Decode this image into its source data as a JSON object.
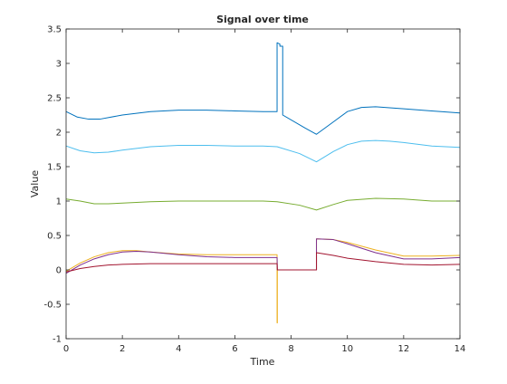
{
  "chart_data": {
    "type": "line",
    "title": "Signal over time",
    "xlabel": "Time",
    "ylabel": "Value",
    "xlim": [
      0,
      14
    ],
    "ylim": [
      -1,
      3.5
    ],
    "xticks": [
      0,
      2,
      4,
      6,
      8,
      10,
      12,
      14
    ],
    "xtick_labels": [
      "0",
      "2",
      "4",
      "6",
      "8",
      "10",
      "12",
      "14"
    ],
    "yticks": [
      -1,
      -0.5,
      0,
      0.5,
      1,
      1.5,
      2,
      2.5,
      3,
      3.5
    ],
    "ytick_labels": [
      "-1",
      "-0.5",
      "0",
      "0.5",
      "1",
      "1.5",
      "2",
      "2.5",
      "3",
      "3.5"
    ],
    "grid": false,
    "legend": "none",
    "series": [
      {
        "color": "#0072BD",
        "x": [
          0,
          0.4,
          0.8,
          1.2,
          2,
          3,
          4,
          5,
          6,
          7,
          7.5,
          7.5,
          7.6,
          7.6,
          7.7,
          7.7,
          8.5,
          8.9,
          9.5,
          10,
          10.5,
          11,
          12,
          13,
          14
        ],
        "y": [
          2.3,
          2.22,
          2.19,
          2.19,
          2.25,
          2.3,
          2.32,
          2.32,
          2.31,
          2.3,
          2.3,
          3.3,
          3.28,
          3.25,
          3.25,
          2.25,
          2.06,
          1.97,
          2.15,
          2.3,
          2.36,
          2.37,
          2.34,
          2.31,
          2.28
        ]
      },
      {
        "color": "#4DBEEE",
        "x": [
          0,
          0.5,
          1,
          1.5,
          2,
          3,
          4,
          5,
          6,
          7,
          7.5,
          8.3,
          8.9,
          9.5,
          10,
          10.5,
          11,
          11.5,
          12,
          13,
          14
        ],
        "y": [
          1.8,
          1.73,
          1.7,
          1.71,
          1.74,
          1.79,
          1.81,
          1.81,
          1.8,
          1.8,
          1.79,
          1.69,
          1.57,
          1.72,
          1.82,
          1.87,
          1.88,
          1.87,
          1.85,
          1.8,
          1.78
        ]
      },
      {
        "color": "#77AC30",
        "x": [
          0,
          0.5,
          1,
          1.5,
          2,
          3,
          4,
          5,
          6,
          7,
          7.5,
          8.3,
          8.9,
          9.5,
          10,
          11,
          12,
          13,
          14
        ],
        "y": [
          1.03,
          1.0,
          0.96,
          0.96,
          0.97,
          0.99,
          1.0,
          1.0,
          1.0,
          1.0,
          0.99,
          0.94,
          0.87,
          0.95,
          1.01,
          1.04,
          1.03,
          1.0,
          1.0
        ]
      },
      {
        "color": "#EDB120",
        "x": [
          0,
          0.5,
          1,
          1.5,
          2,
          2.5,
          3,
          4,
          5,
          6,
          7,
          7.5,
          7.5,
          7.51,
          7.51,
          8.9,
          8.9,
          9.5,
          10,
          11,
          12,
          13,
          14
        ],
        "y": [
          -0.02,
          0.1,
          0.19,
          0.25,
          0.28,
          0.28,
          0.26,
          0.23,
          0.22,
          0.22,
          0.22,
          0.22,
          -0.77,
          -0.77,
          0.0,
          0.0,
          0.45,
          0.44,
          0.4,
          0.29,
          0.2,
          0.2,
          0.21
        ]
      },
      {
        "color": "#7E2F8E",
        "x": [
          0,
          0.5,
          1,
          1.5,
          2,
          2.5,
          3,
          4,
          5,
          6,
          7,
          7.5,
          7.51,
          8.9,
          8.9,
          9.5,
          10,
          11,
          12,
          13,
          14
        ],
        "y": [
          -0.05,
          0.07,
          0.16,
          0.22,
          0.26,
          0.27,
          0.26,
          0.22,
          0.19,
          0.18,
          0.18,
          0.18,
          0.0,
          0.0,
          0.45,
          0.44,
          0.38,
          0.25,
          0.16,
          0.16,
          0.18
        ]
      },
      {
        "color": "#A2142F",
        "x": [
          0,
          0.5,
          1,
          1.5,
          2,
          3,
          4,
          5,
          6,
          7,
          7.5,
          7.51,
          8.9,
          8.9,
          9.5,
          10,
          11,
          12,
          13,
          14
        ],
        "y": [
          -0.03,
          0.02,
          0.05,
          0.07,
          0.08,
          0.09,
          0.09,
          0.09,
          0.09,
          0.09,
          0.09,
          0.0,
          0.0,
          0.25,
          0.21,
          0.17,
          0.12,
          0.08,
          0.07,
          0.08
        ]
      }
    ]
  }
}
